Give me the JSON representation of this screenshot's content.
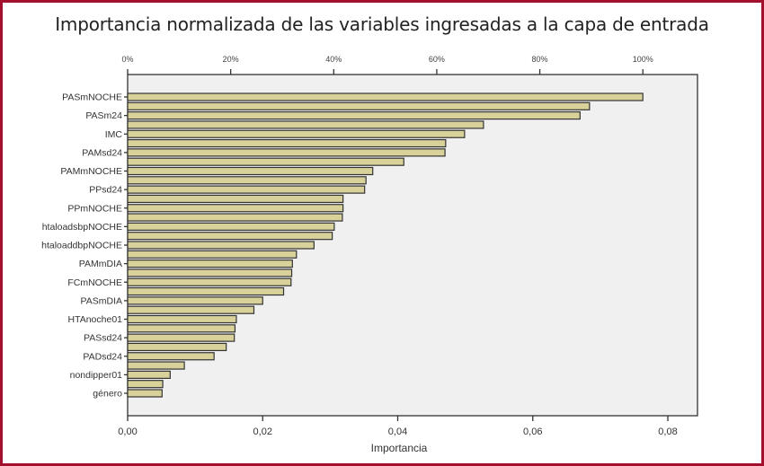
{
  "chart_data": {
    "type": "bar",
    "orientation": "horizontal",
    "title": "Importancia normalizada de las variables ingresadas a la capa de entrada",
    "xlabel": "Importancia",
    "ylabel": "",
    "xlim": [
      0,
      0.084
    ],
    "x_ticks": [
      "0,00",
      "0,02",
      "0,04",
      "0,06",
      "0,08"
    ],
    "x_tick_values": [
      0,
      0.02,
      0.04,
      0.06,
      0.08
    ],
    "top_axis_ticks": [
      "0%",
      "20%",
      "40%",
      "60%",
      "80%",
      "100%"
    ],
    "top_axis_values": [
      0,
      20,
      40,
      60,
      80,
      100
    ],
    "grid": false,
    "bar_color": "#d8d29a",
    "bar_edge_color": "#333333",
    "plot_background": "#f0f0f0",
    "categories": [
      "PASmNOCHE",
      "",
      "PASm24",
      "",
      "IMC",
      "",
      "PAMsd24",
      "",
      "PAMmNOCHE",
      "",
      "PPsd24",
      "",
      "PPmNOCHE",
      "",
      "htaloadsbpNOCHE",
      "",
      "htaloaddbpNOCHE",
      "",
      "PAMmDIA",
      "",
      "FCmNOCHE",
      "",
      "PASmDIA",
      "",
      "HTAnoche01",
      "",
      "PASsd24",
      "",
      "PADsd24",
      "",
      "nondipper01",
      "",
      "género"
    ],
    "values": [
      0.0763,
      0.0684,
      0.067,
      0.0527,
      0.0499,
      0.0471,
      0.047,
      0.0409,
      0.0363,
      0.0353,
      0.0351,
      0.0319,
      0.0319,
      0.0318,
      0.0306,
      0.0303,
      0.0276,
      0.025,
      0.0244,
      0.0243,
      0.0242,
      0.0231,
      0.02,
      0.0187,
      0.0161,
      0.0159,
      0.0158,
      0.0146,
      0.0128,
      0.0084,
      0.0063,
      0.0052,
      0.0051
    ]
  },
  "frame_color": "#a3102e"
}
